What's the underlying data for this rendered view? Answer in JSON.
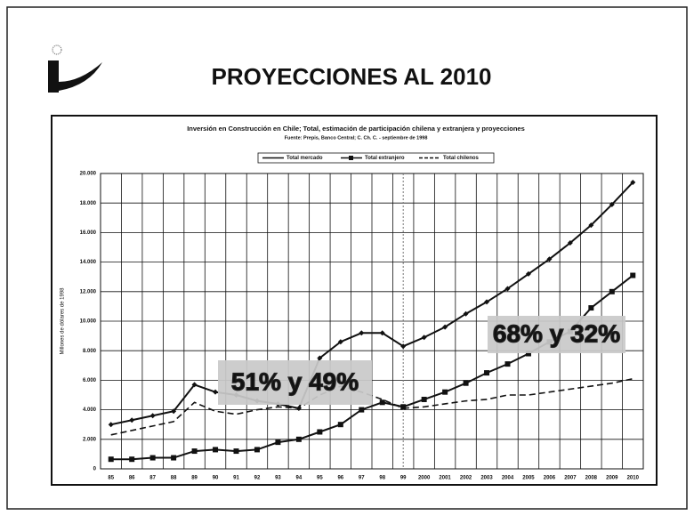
{
  "slide_title": "PROYECCIONES AL 2010",
  "chart_data": {
    "type": "line",
    "title": "Inversión en Construcción en Chile; Total, estimación de participación chilena y extranjera y proyecciones",
    "subtitle": "Fuente: Prepis, Banco Central; C. Ch. C. - septiembre de 1998",
    "y_label": "Millones de dólares de 1998",
    "categories": [
      "85",
      "86",
      "87",
      "88",
      "89",
      "90",
      "91",
      "92",
      "93",
      "94",
      "95",
      "96",
      "97",
      "98",
      "99",
      "2000",
      "2001",
      "2002",
      "2003",
      "2004",
      "2005",
      "2006",
      "2007",
      "2008",
      "2009",
      "2010"
    ],
    "series": [
      {
        "name": "Total mercado",
        "color": "#111111",
        "marker": "diamond",
        "dash": false,
        "values": [
          3000,
          3300,
          3600,
          3900,
          5700,
          5200,
          5000,
          4600,
          4400,
          4100,
          7500,
          8600,
          9200,
          9200,
          8300,
          8900,
          9600,
          10500,
          11300,
          12200,
          13200,
          14200,
          15300,
          16500,
          17900,
          19400
        ]
      },
      {
        "name": "Total extranjero",
        "color": "#111111",
        "marker": "square",
        "dash": false,
        "values": [
          650,
          650,
          750,
          750,
          1200,
          1300,
          1200,
          1300,
          1800,
          2000,
          2500,
          3000,
          4000,
          4500,
          4200,
          4700,
          5200,
          5800,
          6500,
          7100,
          7800,
          8600,
          9300,
          10900,
          12000,
          13100
        ]
      },
      {
        "name": "Total chilenos",
        "color": "#111111",
        "marker": "none",
        "dash": true,
        "values": [
          2300,
          2600,
          2900,
          3200,
          4500,
          3900,
          3700,
          4000,
          4200,
          4100,
          5000,
          5600,
          5200,
          4700,
          4100,
          4200,
          4400,
          4600,
          4700,
          5000,
          5000,
          5200,
          5400,
          5600,
          5800,
          6100
        ]
      }
    ],
    "ylim": [
      0,
      20000
    ],
    "yticks": [
      0,
      {
        "value": 2000,
        "label": "2.000"
      },
      {
        "value": 4000,
        "label": "4.000"
      },
      {
        "value": 6000,
        "label": "6.000"
      },
      {
        "value": 8000,
        "label": "8.000"
      },
      {
        "value": 10000,
        "label": "10.000"
      },
      {
        "value": 12000,
        "label": "12.000"
      },
      {
        "value": 14000,
        "label": "14.000"
      },
      {
        "value": 16000,
        "label": "16.000"
      },
      {
        "value": 18000,
        "label": "18.000"
      },
      {
        "value": 20000,
        "label": "20.000"
      }
    ],
    "grid": true,
    "annotations": [
      "51% y 49%",
      "68% y 32%"
    ]
  }
}
